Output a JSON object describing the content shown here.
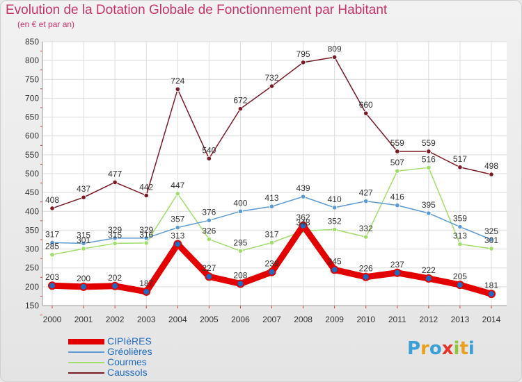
{
  "title": "Evolution de la Dotation Globale de Fonctionnement par Habitant",
  "subtitle": "(en € et par an)",
  "logo": {
    "text": "Proxiti",
    "letter_colors": [
      "#3aa0d8",
      "#e8a020",
      "#3aa0d8",
      "#e8352a",
      "#8fc53c",
      "#e8a020",
      "#3aa0d8"
    ]
  },
  "chart_data": {
    "type": "line",
    "categories": [
      "2000",
      "2001",
      "2002",
      "2003",
      "2004",
      "2005",
      "2006",
      "2007",
      "2008",
      "2009",
      "2010",
      "2011",
      "2012",
      "2013",
      "2014"
    ],
    "ylim": [
      150,
      850
    ],
    "yticks": [
      150,
      200,
      250,
      300,
      350,
      400,
      450,
      500,
      550,
      600,
      650,
      700,
      750,
      800,
      850
    ],
    "grid": true,
    "legend_position": "bottom-left",
    "series": [
      {
        "name": "CIPIèRES",
        "color": "#e20000",
        "values": [
          203,
          200,
          202,
          187,
          313,
          227,
          208,
          239,
          362,
          245,
          226,
          237,
          222,
          205,
          181
        ]
      },
      {
        "name": "Gréolières",
        "color": "#5b9bd5",
        "values": [
          317,
          315,
          329,
          329,
          357,
          376,
          400,
          413,
          439,
          410,
          427,
          416,
          395,
          359,
          325
        ]
      },
      {
        "name": "Courmes",
        "color": "#9fde6a",
        "values": [
          285,
          301,
          315,
          316,
          447,
          326,
          295,
          317,
          348,
          352,
          332,
          507,
          516,
          313,
          301
        ]
      },
      {
        "name": "Caussols",
        "color": "#7a1a24",
        "values": [
          408,
          437,
          477,
          442,
          724,
          540,
          672,
          732,
          795,
          809,
          660,
          559,
          559,
          517,
          498
        ]
      }
    ]
  }
}
